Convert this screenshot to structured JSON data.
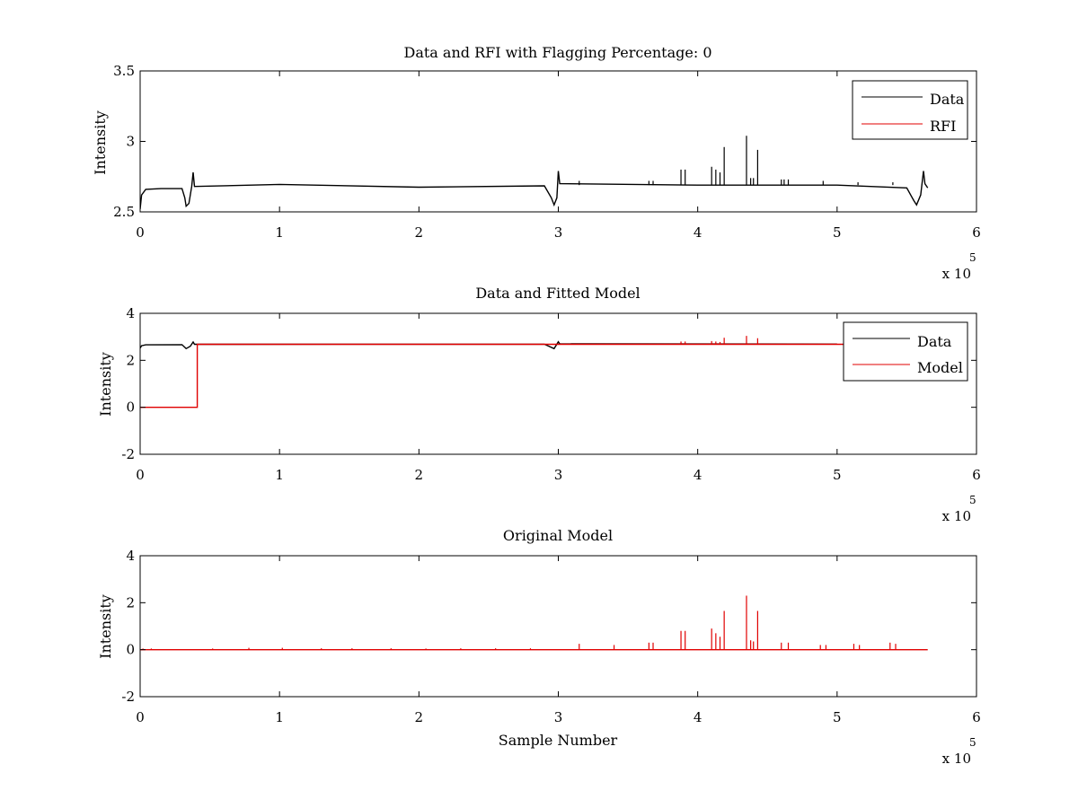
{
  "chart_data": [
    {
      "type": "line",
      "title": "Data and RFI with Flagging Percentage: 0",
      "xlabel": "",
      "ylabel": "Intensity",
      "xlim": [
        0,
        6
      ],
      "ylim": [
        2.5,
        3.5
      ],
      "x_ticks": [
        "0",
        "1",
        "2",
        "3",
        "4",
        "5",
        "6"
      ],
      "y_ticks": [
        "2.5",
        "3",
        "3.5"
      ],
      "x_multiplier": "x 10",
      "x_exponent": "5",
      "x_units": "samples ×10^5",
      "legend": {
        "placement": "top-right",
        "entries": [
          "Data",
          "RFI"
        ]
      },
      "series": [
        {
          "name": "Data",
          "color": "#000000",
          "baseline_points": [
            [
              0,
              2.52
            ],
            [
              0.01,
              2.62
            ],
            [
              0.04,
              2.66
            ],
            [
              0.15,
              2.665
            ],
            [
              0.3,
              2.665
            ],
            [
              0.32,
              2.6
            ],
            [
              0.33,
              2.54
            ],
            [
              0.35,
              2.56
            ],
            [
              0.37,
              2.68
            ],
            [
              0.38,
              2.78
            ],
            [
              0.39,
              2.68
            ],
            [
              1.0,
              2.695
            ],
            [
              2.0,
              2.675
            ],
            [
              2.9,
              2.685
            ],
            [
              2.95,
              2.6
            ],
            [
              2.97,
              2.55
            ],
            [
              2.99,
              2.6
            ],
            [
              3.0,
              2.79
            ],
            [
              3.01,
              2.7
            ],
            [
              4.0,
              2.69
            ],
            [
              5.0,
              2.69
            ],
            [
              5.5,
              2.67
            ],
            [
              5.55,
              2.58
            ],
            [
              5.57,
              2.55
            ],
            [
              5.6,
              2.62
            ],
            [
              5.62,
              2.79
            ],
            [
              5.63,
              2.7
            ],
            [
              5.65,
              2.67
            ]
          ],
          "spikes": [
            [
              3.15,
              2.72
            ],
            [
              3.65,
              2.72
            ],
            [
              3.68,
              2.72
            ],
            [
              3.88,
              2.8
            ],
            [
              3.91,
              2.8
            ],
            [
              4.1,
              2.82
            ],
            [
              4.13,
              2.8
            ],
            [
              4.16,
              2.78
            ],
            [
              4.19,
              2.96
            ],
            [
              4.35,
              3.04
            ],
            [
              4.38,
              2.74
            ],
            [
              4.4,
              2.74
            ],
            [
              4.43,
              2.94
            ],
            [
              4.6,
              2.73
            ],
            [
              4.62,
              2.73
            ],
            [
              4.65,
              2.73
            ],
            [
              4.9,
              2.72
            ],
            [
              5.15,
              2.71
            ],
            [
              5.4,
              2.71
            ]
          ]
        },
        {
          "name": "RFI",
          "color": "#e00000",
          "points": []
        }
      ]
    },
    {
      "type": "line",
      "title": "Data and Fitted Model",
      "xlabel": "",
      "ylabel": "Intensity",
      "xlim": [
        0,
        6
      ],
      "ylim": [
        -2,
        4
      ],
      "x_ticks": [
        "0",
        "1",
        "2",
        "3",
        "4",
        "5",
        "6"
      ],
      "y_ticks": [
        "-2",
        "0",
        "2",
        "4"
      ],
      "x_multiplier": "x 10",
      "x_exponent": "5",
      "legend": {
        "placement": "top-right",
        "entries": [
          "Data",
          "Model"
        ]
      },
      "series": [
        {
          "name": "Data",
          "color": "#000000",
          "baseline_points": [
            [
              0,
              2.52
            ],
            [
              0.01,
              2.62
            ],
            [
              0.04,
              2.66
            ],
            [
              0.3,
              2.665
            ],
            [
              0.33,
              2.5
            ],
            [
              0.36,
              2.6
            ],
            [
              0.38,
              2.78
            ],
            [
              0.39,
              2.68
            ],
            [
              2.9,
              2.685
            ],
            [
              2.97,
              2.5
            ],
            [
              3.0,
              2.79
            ],
            [
              3.01,
              2.7
            ],
            [
              5.0,
              2.69
            ]
          ]
        },
        {
          "name": "Model",
          "color": "#e00000",
          "baseline_points": [
            [
              0,
              0
            ],
            [
              0.41,
              0
            ],
            [
              0.41,
              2.68
            ],
            [
              5.65,
              2.68
            ]
          ],
          "spikes": [
            [
              3.88,
              2.8
            ],
            [
              3.91,
              2.8
            ],
            [
              4.1,
              2.82
            ],
            [
              4.13,
              2.8
            ],
            [
              4.16,
              2.78
            ],
            [
              4.19,
              2.96
            ],
            [
              4.35,
              3.04
            ],
            [
              4.43,
              2.94
            ]
          ]
        }
      ]
    },
    {
      "type": "line",
      "title": "Original Model",
      "xlabel": "Sample Number",
      "ylabel": "Intensity",
      "xlim": [
        0,
        6
      ],
      "ylim": [
        -2,
        4
      ],
      "x_ticks": [
        "0",
        "1",
        "2",
        "3",
        "4",
        "5",
        "6"
      ],
      "y_ticks": [
        "-2",
        "0",
        "2",
        "4"
      ],
      "x_multiplier": "x 10",
      "x_exponent": "5",
      "series": [
        {
          "name": "",
          "color": "#e00000",
          "baseline_points": [
            [
              0,
              0
            ],
            [
              5.65,
              0
            ]
          ],
          "spikes": [
            [
              0.02,
              0.05
            ],
            [
              0.08,
              0.05
            ],
            [
              0.52,
              0.05
            ],
            [
              0.78,
              0.08
            ],
            [
              1.02,
              0.08
            ],
            [
              1.3,
              0.06
            ],
            [
              1.52,
              0.06
            ],
            [
              1.8,
              0.06
            ],
            [
              2.05,
              0.05
            ],
            [
              2.3,
              0.06
            ],
            [
              2.55,
              0.06
            ],
            [
              2.8,
              0.06
            ],
            [
              3.15,
              0.25
            ],
            [
              3.4,
              0.2
            ],
            [
              3.65,
              0.3
            ],
            [
              3.68,
              0.3
            ],
            [
              3.88,
              0.8
            ],
            [
              3.91,
              0.8
            ],
            [
              4.1,
              0.9
            ],
            [
              4.13,
              0.7
            ],
            [
              4.16,
              0.55
            ],
            [
              4.19,
              1.65
            ],
            [
              4.35,
              2.3
            ],
            [
              4.38,
              0.4
            ],
            [
              4.4,
              0.35
            ],
            [
              4.43,
              1.65
            ],
            [
              4.6,
              0.3
            ],
            [
              4.65,
              0.3
            ],
            [
              4.88,
              0.2
            ],
            [
              4.92,
              0.2
            ],
            [
              5.12,
              0.25
            ],
            [
              5.16,
              0.2
            ],
            [
              5.38,
              0.3
            ],
            [
              5.42,
              0.25
            ]
          ]
        }
      ]
    }
  ]
}
